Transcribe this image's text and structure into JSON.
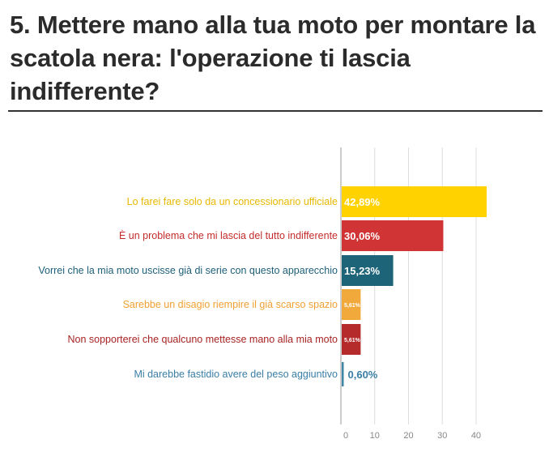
{
  "title": "5. Mettere mano alla tua moto per montare la scatola nera: l'operazione ti lascia indifferente?",
  "chart_data": {
    "type": "bar",
    "orientation": "horizontal",
    "categories": [
      "Lo farei fare solo da un concessionario ufficiale",
      "È un problema che mi lascia del tutto indifferente",
      "Vorrei che la mia moto uscisse già di serie con questo apparecchio",
      "Sarebbe un disagio riempire il già scarso spazio",
      "Non sopporterei che qualcuno mettesse mano alla mia moto",
      "Mi darebbe fastidio avere del peso aggiuntivo"
    ],
    "values": [
      42.89,
      30.06,
      15.23,
      5.61,
      5.61,
      0.6
    ],
    "value_labels": [
      "42,89%",
      "30,06%",
      "15,23%",
      "5,61%",
      "5,61%",
      "0,60%"
    ],
    "colors": [
      "#ffd200",
      "#d03434",
      "#1e6478",
      "#f2a93b",
      "#b52a2a",
      "#3f86a8"
    ],
    "label_colors": [
      "#e8b800",
      "#c42c2c",
      "#1e5f78",
      "#f0a032",
      "#a82424",
      "#3a7ea6"
    ],
    "xticks": [
      0,
      10,
      20,
      30,
      40
    ],
    "xlim": [
      0,
      42.89
    ],
    "xlabel": "",
    "ylabel": ""
  }
}
